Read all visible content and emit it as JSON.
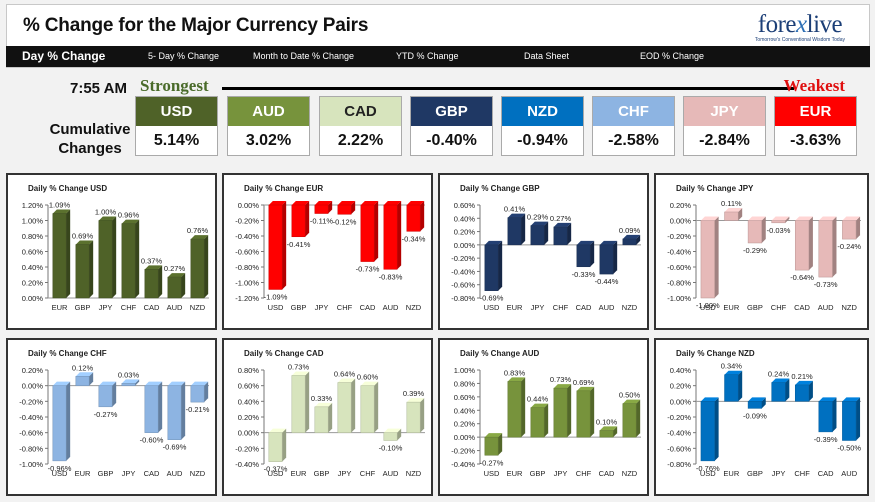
{
  "header": {
    "title": "% Change for the Major Currency Pairs",
    "logo": {
      "part1": "fore",
      "part2": "x",
      "part3": "live",
      "tagline": "Tomorrow's Conventional Wisdom Today"
    }
  },
  "tabs": [
    {
      "label": "Day % Change",
      "active": true
    },
    {
      "label": "5- Day % Change",
      "active": false
    },
    {
      "label": "Month to Date % Change",
      "active": false
    },
    {
      "label": "YTD % Change",
      "active": false
    },
    {
      "label": "Data Sheet",
      "active": false
    },
    {
      "label": "EOD % Change",
      "active": false
    }
  ],
  "summary": {
    "time": "7:55 AM",
    "strongest_label": "Strongest",
    "weakest_label": "Weakest",
    "cumulative_label": "Cumulative Changes",
    "currencies": [
      {
        "code": "USD",
        "value": "5.14%",
        "color": "#4f6228",
        "text_color": "#ffffff"
      },
      {
        "code": "AUD",
        "value": "3.02%",
        "color": "#77933c",
        "text_color": "#ffffff"
      },
      {
        "code": "CAD",
        "value": "2.22%",
        "color": "#d7e4bd",
        "text_color": "#222222"
      },
      {
        "code": "GBP",
        "value": "-0.40%",
        "color": "#1f3864",
        "text_color": "#ffffff"
      },
      {
        "code": "NZD",
        "value": "-0.94%",
        "color": "#0070c0",
        "text_color": "#ffffff"
      },
      {
        "code": "CHF",
        "value": "-2.58%",
        "color": "#8db4e2",
        "text_color": "#ffffff"
      },
      {
        "code": "JPY",
        "value": "-2.84%",
        "color": "#e6b9b8",
        "text_color": "#ffffff"
      },
      {
        "code": "EUR",
        "value": "-3.63%",
        "color": "#ff0000",
        "text_color": "#ffffff"
      }
    ]
  },
  "chart_data": [
    {
      "type": "bar",
      "title": "Daily % Change USD",
      "categories": [
        "EUR",
        "GBP",
        "JPY",
        "CHF",
        "CAD",
        "AUD",
        "NZD"
      ],
      "values": [
        1.09,
        0.69,
        1.0,
        0.96,
        0.37,
        0.27,
        0.76
      ],
      "labels": [
        "1.09%",
        "0.69%",
        "1.00%",
        "0.96%",
        "0.37%",
        "0.27%",
        "0.76%"
      ],
      "ylim": [
        0,
        1.2
      ],
      "ytick_step": 0.2,
      "tick_labels": [
        "0.00%",
        "0.20%",
        "0.40%",
        "0.60%",
        "0.80%",
        "1.00%",
        "1.20%"
      ],
      "color": "#4f6228"
    },
    {
      "type": "bar",
      "title": "Daily % Change EUR",
      "categories": [
        "USD",
        "GBP",
        "JPY",
        "CHF",
        "CAD",
        "AUD",
        "NZD"
      ],
      "values": [
        -1.09,
        -0.41,
        -0.11,
        -0.12,
        -0.73,
        -0.83,
        -0.34
      ],
      "labels": [
        "-1.09%",
        "-0.41%",
        "-0.11%",
        "-0.12%",
        "-0.73%",
        "-0.83%",
        "-0.34%"
      ],
      "ylim": [
        -1.2,
        0
      ],
      "ytick_step": 0.2,
      "tick_labels": [
        "-1.20%",
        "-1.00%",
        "-0.80%",
        "-0.60%",
        "-0.40%",
        "-0.20%",
        "0.00%"
      ],
      "color": "#ff0000"
    },
    {
      "type": "bar",
      "title": "Daily % Change GBP",
      "categories": [
        "USD",
        "EUR",
        "JPY",
        "CHF",
        "CAD",
        "AUD",
        "NZD"
      ],
      "values": [
        -0.69,
        0.41,
        0.29,
        0.27,
        -0.33,
        -0.44,
        0.09
      ],
      "labels": [
        "-0.69%",
        "0.41%",
        "0.29%",
        "0.27%",
        "-0.33%",
        "-0.44%",
        "0.09%"
      ],
      "ylim": [
        -0.8,
        0.6
      ],
      "ytick_step": 0.2,
      "tick_labels": [
        "-0.80%",
        "-0.60%",
        "-0.40%",
        "-0.20%",
        "0.00%",
        "0.20%",
        "0.40%",
        "0.60%"
      ],
      "color": "#1f3864"
    },
    {
      "type": "bar",
      "title": "Daily % Change JPY",
      "categories": [
        "USD",
        "EUR",
        "GBP",
        "CHF",
        "CAD",
        "AUD",
        "NZD"
      ],
      "values": [
        -1.0,
        0.11,
        -0.29,
        -0.03,
        -0.64,
        -0.73,
        -0.24
      ],
      "labels": [
        "-1.00%",
        "0.11%",
        "-0.29%",
        "-0.03%",
        "-0.64%",
        "-0.73%",
        "-0.24%"
      ],
      "ylim": [
        -1.0,
        0.2
      ],
      "ytick_step": 0.2,
      "tick_labels": [
        "-1.00%",
        "-0.80%",
        "-0.60%",
        "-0.40%",
        "-0.20%",
        "0.00%",
        "0.20%"
      ],
      "color": "#e6b9b8"
    },
    {
      "type": "bar",
      "title": "Daily % Change CHF",
      "categories": [
        "USD",
        "EUR",
        "GBP",
        "JPY",
        "CAD",
        "AUD",
        "NZD"
      ],
      "values": [
        -0.96,
        0.12,
        -0.27,
        0.03,
        -0.6,
        -0.69,
        -0.21
      ],
      "labels": [
        "-0.96%",
        "0.12%",
        "-0.27%",
        "0.03%",
        "-0.60%",
        "-0.69%",
        "-0.21%"
      ],
      "ylim": [
        -1.0,
        0.2
      ],
      "ytick_step": 0.2,
      "tick_labels": [
        "-1.00%",
        "-0.80%",
        "-0.60%",
        "-0.40%",
        "-0.20%",
        "0.00%",
        "0.20%"
      ],
      "color": "#8db4e2"
    },
    {
      "type": "bar",
      "title": "Daily % Change CAD",
      "categories": [
        "USD",
        "EUR",
        "GBP",
        "JPY",
        "CHF",
        "AUD",
        "NZD"
      ],
      "values": [
        -0.37,
        0.73,
        0.33,
        0.64,
        0.6,
        -0.1,
        0.39
      ],
      "labels": [
        "-0.37%",
        "0.73%",
        "0.33%",
        "0.64%",
        "0.60%",
        "-0.10%",
        "0.39%"
      ],
      "ylim": [
        -0.4,
        0.8
      ],
      "ytick_step": 0.2,
      "tick_labels": [
        "-0.40%",
        "-0.20%",
        "0.00%",
        "0.20%",
        "0.40%",
        "0.60%",
        "0.80%"
      ],
      "color": "#d7e4bd"
    },
    {
      "type": "bar",
      "title": "Daily % Change AUD",
      "categories": [
        "USD",
        "EUR",
        "GBP",
        "JPY",
        "CHF",
        "CAD",
        "NZD"
      ],
      "values": [
        -0.27,
        0.83,
        0.44,
        0.73,
        0.69,
        0.1,
        0.5
      ],
      "labels": [
        "-0.27%",
        "0.83%",
        "0.44%",
        "0.73%",
        "0.69%",
        "0.10%",
        "0.50%"
      ],
      "ylim": [
        -0.4,
        1.0
      ],
      "ytick_step": 0.2,
      "tick_labels": [
        "-0.40%",
        "-0.20%",
        "0.00%",
        "0.20%",
        "0.40%",
        "0.60%",
        "0.80%",
        "1.00%"
      ],
      "color": "#77933c"
    },
    {
      "type": "bar",
      "title": "Daily % Change NZD",
      "categories": [
        "USD",
        "EUR",
        "GBP",
        "JPY",
        "CHF",
        "CAD",
        "AUD"
      ],
      "values": [
        -0.76,
        0.34,
        -0.09,
        0.24,
        0.21,
        -0.39,
        -0.5
      ],
      "labels": [
        "-0.76%",
        "0.34%",
        "-0.09%",
        "0.24%",
        "0.21%",
        "-0.39%",
        "-0.50%"
      ],
      "ylim": [
        -0.8,
        0.4
      ],
      "ytick_step": 0.2,
      "tick_labels": [
        "-0.80%",
        "-0.60%",
        "-0.40%",
        "-0.20%",
        "0.00%",
        "0.20%",
        "0.40%"
      ],
      "color": "#0070c0"
    }
  ]
}
